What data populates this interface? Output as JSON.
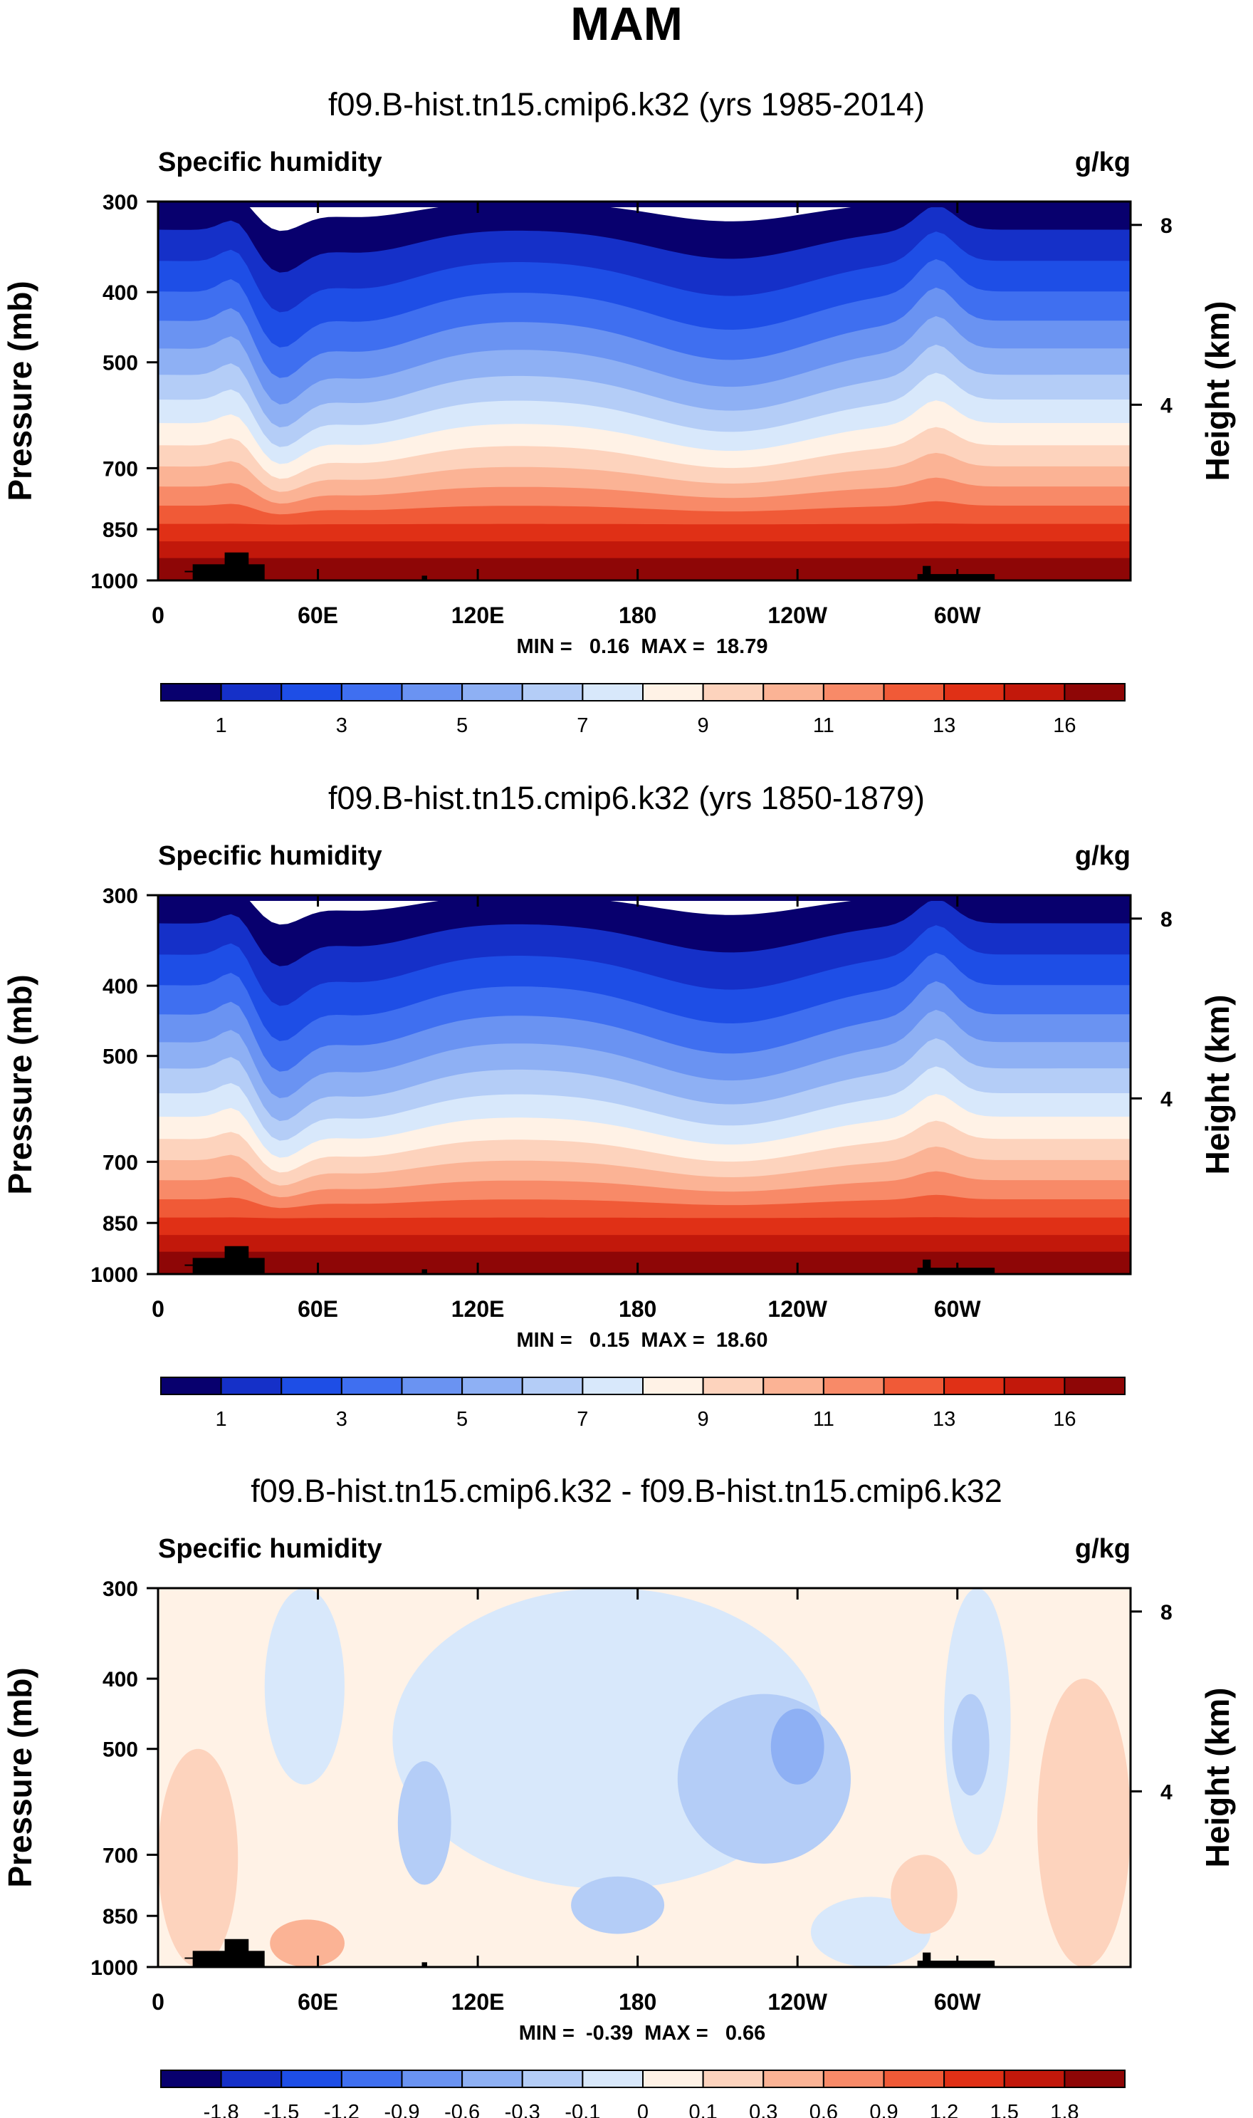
{
  "page_title": "MAM",
  "chart_data": [
    {
      "type": "heatmap",
      "title": "f09.B-hist.tn15.cmip6.k32 (yrs 1985-2014)",
      "variable": "Specific humidity",
      "units": "g/kg",
      "ylabel": "Pressure (mb)",
      "y2label": "Height (km)",
      "xticks": [
        "0",
        "60E",
        "120E",
        "180",
        "120W",
        "60W"
      ],
      "xtick_lon": [
        0,
        60,
        120,
        180,
        240,
        300
      ],
      "xlim": [
        0,
        365
      ],
      "yticks": [
        "300",
        "400",
        "500",
        "700",
        "850",
        "1000"
      ],
      "ytick_p": [
        300,
        400,
        500,
        700,
        850,
        1000
      ],
      "ylim": [
        300,
        1000
      ],
      "y2ticks": [
        "8",
        "4"
      ],
      "y2tick_km": [
        8,
        4
      ],
      "stats": "MIN =   0.16  MAX =  18.79",
      "min": 0.16,
      "max": 18.79,
      "colorbar_labels": [
        "1",
        "3",
        "5",
        "7",
        "9",
        "11",
        "13",
        "16"
      ],
      "colorbar_colors": [
        "#08006e",
        "#1530c8",
        "#1e4ee6",
        "#3f6ff0",
        "#6a93f2",
        "#8eb0f4",
        "#b4cdf7",
        "#d8e8fb",
        "#fff2e6",
        "#fdd3bd",
        "#fbb395",
        "#f88a68",
        "#f05a37",
        "#e03016",
        "#c2180b",
        "#8e0606"
      ],
      "anomaly": false,
      "topography": [
        {
          "lon": [
            10,
            20
          ],
          "bottom": 955,
          "top": 970
        },
        {
          "lon": [
            13,
            40
          ],
          "bottom": 1000,
          "top": 950
        },
        {
          "lon": [
            25,
            34
          ],
          "bottom": 1000,
          "top": 915
        },
        {
          "lon": [
            99,
            101
          ],
          "bottom": 1000,
          "top": 985
        },
        {
          "lon": [
            285,
            314
          ],
          "bottom": 1000,
          "top": 980
        },
        {
          "lon": [
            287,
            290
          ],
          "bottom": 1000,
          "top": 955
        }
      ]
    },
    {
      "type": "heatmap",
      "title": "f09.B-hist.tn15.cmip6.k32 (yrs 1850-1879)",
      "variable": "Specific humidity",
      "units": "g/kg",
      "ylabel": "Pressure (mb)",
      "y2label": "Height (km)",
      "xticks": [
        "0",
        "60E",
        "120E",
        "180",
        "120W",
        "60W"
      ],
      "xtick_lon": [
        0,
        60,
        120,
        180,
        240,
        300
      ],
      "xlim": [
        0,
        365
      ],
      "yticks": [
        "300",
        "400",
        "500",
        "700",
        "850",
        "1000"
      ],
      "ytick_p": [
        300,
        400,
        500,
        700,
        850,
        1000
      ],
      "ylim": [
        300,
        1000
      ],
      "y2ticks": [
        "8",
        "4"
      ],
      "y2tick_km": [
        8,
        4
      ],
      "stats": "MIN =   0.15  MAX =  18.60",
      "min": 0.15,
      "max": 18.6,
      "colorbar_labels": [
        "1",
        "3",
        "5",
        "7",
        "9",
        "11",
        "13",
        "16"
      ],
      "colorbar_colors": [
        "#08006e",
        "#1530c8",
        "#1e4ee6",
        "#3f6ff0",
        "#6a93f2",
        "#8eb0f4",
        "#b4cdf7",
        "#d8e8fb",
        "#fff2e6",
        "#fdd3bd",
        "#fbb395",
        "#f88a68",
        "#f05a37",
        "#e03016",
        "#c2180b",
        "#8e0606"
      ],
      "anomaly": false,
      "topography": [
        {
          "lon": [
            10,
            20
          ],
          "bottom": 955,
          "top": 970
        },
        {
          "lon": [
            13,
            40
          ],
          "bottom": 1000,
          "top": 950
        },
        {
          "lon": [
            25,
            34
          ],
          "bottom": 1000,
          "top": 915
        },
        {
          "lon": [
            99,
            101
          ],
          "bottom": 1000,
          "top": 985
        },
        {
          "lon": [
            285,
            314
          ],
          "bottom": 1000,
          "top": 980
        },
        {
          "lon": [
            287,
            290
          ],
          "bottom": 1000,
          "top": 955
        }
      ]
    },
    {
      "type": "heatmap",
      "title": "f09.B-hist.tn15.cmip6.k32 - f09.B-hist.tn15.cmip6.k32",
      "variable": "Specific humidity",
      "units": "g/kg",
      "ylabel": "Pressure (mb)",
      "y2label": "Height (km)",
      "xticks": [
        "0",
        "60E",
        "120E",
        "180",
        "120W",
        "60W"
      ],
      "xtick_lon": [
        0,
        60,
        120,
        180,
        240,
        300
      ],
      "xlim": [
        0,
        365
      ],
      "yticks": [
        "300",
        "400",
        "500",
        "700",
        "850",
        "1000"
      ],
      "ytick_p": [
        300,
        400,
        500,
        700,
        850,
        1000
      ],
      "ylim": [
        300,
        1000
      ],
      "y2ticks": [
        "8",
        "4"
      ],
      "y2tick_km": [
        8,
        4
      ],
      "stats": "MIN =  -0.39  MAX =   0.66",
      "min": -0.39,
      "max": 0.66,
      "colorbar_labels": [
        "-1.8",
        "-1.5",
        "-1.2",
        "-0.9",
        "-0.6",
        "-0.3",
        "-0.1",
        "0",
        "0.1",
        "0.3",
        "0.6",
        "0.9",
        "1.2",
        "1.5",
        "1.8"
      ],
      "colorbar_colors": [
        "#08006e",
        "#1530c8",
        "#1e4ee6",
        "#3f6ff0",
        "#6a93f2",
        "#8eb0f4",
        "#b4cdf7",
        "#d8e8fb",
        "#fff2e6",
        "#fdd3bd",
        "#fbb395",
        "#f88a68",
        "#f05a37",
        "#e03016",
        "#c2180b",
        "#8e0606"
      ],
      "anomaly": true,
      "anomaly_regions": [
        {
          "level": "-0.1_to_0",
          "lon": [
            40,
            70
          ],
          "p": [
            300,
            560
          ]
        },
        {
          "lon": [
            88,
            250
          ],
          "p": [
            300,
            780
          ],
          "level": "-0.1_to_0"
        },
        {
          "lon": [
            195,
            260
          ],
          "p": [
            420,
            720
          ],
          "level": "-0.3_to_-0.1"
        },
        {
          "lon": [
            90,
            110
          ],
          "p": [
            520,
            770
          ],
          "level": "-0.3_to_-0.1"
        },
        {
          "lon": [
            155,
            190
          ],
          "p": [
            750,
            900
          ],
          "level": "-0.3_to_-0.1"
        },
        {
          "lon": [
            230,
            250
          ],
          "p": [
            440,
            560
          ],
          "level": "-0.6_to_-0.3"
        },
        {
          "lon": [
            295,
            320
          ],
          "p": [
            300,
            700
          ],
          "level": "-0.1_to_0"
        },
        {
          "lon": [
            298,
            312
          ],
          "p": [
            420,
            580
          ],
          "level": "-0.3_to_-0.1"
        },
        {
          "lon": [
            245,
            290
          ],
          "p": [
            800,
            1000
          ],
          "level": "-0.1_to_0"
        },
        {
          "lon": [
            330,
            365
          ],
          "p": [
            400,
            1000
          ],
          "level": "0.1_to_0.3"
        },
        {
          "lon": [
            0,
            30
          ],
          "p": [
            500,
            1000
          ],
          "level": "0.1_to_0.3"
        },
        {
          "lon": [
            42,
            70
          ],
          "p": [
            860,
            1000
          ],
          "level": "0.3_to_0.6"
        },
        {
          "lon": [
            275,
            300
          ],
          "p": [
            700,
            900
          ],
          "level": "0.1_to_0.3"
        }
      ],
      "topography": [
        {
          "lon": [
            10,
            20
          ],
          "bottom": 955,
          "top": 970
        },
        {
          "lon": [
            13,
            40
          ],
          "bottom": 1000,
          "top": 950
        },
        {
          "lon": [
            25,
            34
          ],
          "bottom": 1000,
          "top": 915
        },
        {
          "lon": [
            99,
            101
          ],
          "bottom": 1000,
          "top": 985
        },
        {
          "lon": [
            285,
            314
          ],
          "bottom": 1000,
          "top": 980
        },
        {
          "lon": [
            287,
            290
          ],
          "bottom": 1000,
          "top": 955
        }
      ]
    }
  ]
}
